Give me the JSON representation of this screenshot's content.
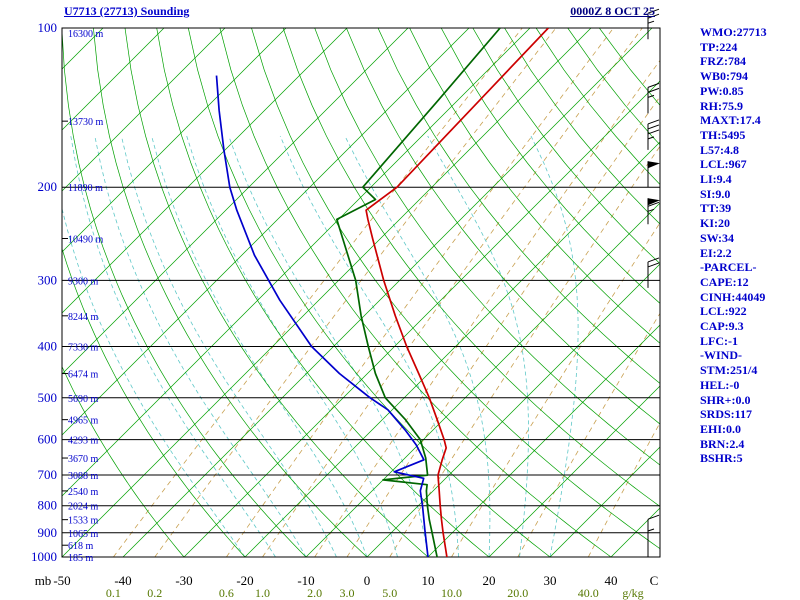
{
  "header": {
    "title": "U7713 (27713) Sounding",
    "date": "0000Z  8 OCT 25"
  },
  "stats": [
    "WMO:27713",
    "TP:224",
    "FRZ:784",
    "WB0:794",
    "PW:0.85",
    "RH:75.9",
    "MAXT:17.4",
    "TH:5495",
    "L57:4.8",
    "LCL:967",
    "LI:9.4",
    "SI:9.0",
    "TT:39",
    "KI:20",
    "SW:34",
    "EI:2.2",
    "-PARCEL-",
    "CAPE:12",
    "CINH:44049",
    "LCL:922",
    "CAP:9.3",
    "LFC:-1",
    "-WIND-",
    "STM:251/4",
    "HEL:-0",
    "SHR+:0.0",
    "SRDS:117",
    "EHI:0.0",
    "BRN:2.4",
    "BSHR:5"
  ],
  "axes": {
    "pressure_unit": "mb",
    "temp_unit": "C",
    "mixing_unit": "g/kg",
    "pressure_labels": [
      100,
      200,
      300,
      400,
      500,
      600,
      700,
      800,
      900,
      1000
    ],
    "temp_labels": [
      -50,
      -40,
      -30,
      -20,
      -10,
      0,
      10,
      20,
      30,
      40
    ],
    "mixing_labels": [
      "0.1",
      "0.2",
      "0.6",
      "1.0",
      "2.0",
      "3.0",
      "5.0",
      "10.0",
      "20.0",
      "40.0"
    ],
    "height_labels": [
      {
        "p": 100,
        "label": "16300 m"
      },
      {
        "p": 150,
        "label": "13730 m"
      },
      {
        "p": 200,
        "label": "11890 m"
      },
      {
        "p": 250,
        "label": "10490 m"
      },
      {
        "p": 300,
        "label": "9300 m"
      },
      {
        "p": 350,
        "label": "8244 m"
      },
      {
        "p": 400,
        "label": "7330 m"
      },
      {
        "p": 450,
        "label": "6474 m"
      },
      {
        "p": 500,
        "label": "5690 m"
      },
      {
        "p": 550,
        "label": "4965 m"
      },
      {
        "p": 600,
        "label": "4293 m"
      },
      {
        "p": 650,
        "label": "3670 m"
      },
      {
        "p": 700,
        "label": "3088 m"
      },
      {
        "p": 750,
        "label": "2540 m"
      },
      {
        "p": 800,
        "label": "2024 m"
      },
      {
        "p": 850,
        "label": "1533 m"
      },
      {
        "p": 900,
        "label": "1065 m"
      },
      {
        "p": 950,
        "label": "618 m"
      },
      {
        "p": 1000,
        "label": "185 m"
      }
    ]
  },
  "chart_data": {
    "type": "skewt_log_p_sounding",
    "title": "U7713 (27713) Sounding",
    "valid_time": "0000Z 8 OCT 25",
    "pressure_range_mb": [
      100,
      1000
    ],
    "temp_range_c": [
      -50,
      40
    ],
    "series": [
      {
        "name": "temperature",
        "color": "#cc0000",
        "points": [
          [
            1000,
            13.1
          ],
          [
            900,
            8.5
          ],
          [
            850,
            6.1
          ],
          [
            800,
            3.6
          ],
          [
            750,
            1.0
          ],
          [
            700,
            -1.8
          ],
          [
            655,
            -3.6
          ],
          [
            622,
            -4.9
          ],
          [
            600,
            -6.6
          ],
          [
            550,
            -11.0
          ],
          [
            500,
            -15.9
          ],
          [
            450,
            -21.6
          ],
          [
            400,
            -28.0
          ],
          [
            350,
            -34.9
          ],
          [
            300,
            -42.6
          ],
          [
            250,
            -51.3
          ],
          [
            230,
            -55.2
          ],
          [
            221,
            -57.0
          ],
          [
            200,
            -55.7
          ],
          [
            137,
            -56.4
          ],
          [
            100,
            -57.0
          ]
        ]
      },
      {
        "name": "dewpoint",
        "color": "#006600",
        "points": [
          [
            1000,
            11.5
          ],
          [
            900,
            6.7
          ],
          [
            850,
            4.1
          ],
          [
            800,
            1.5
          ],
          [
            750,
            -1.1
          ],
          [
            730,
            -2.0
          ],
          [
            715,
            -10.0
          ],
          [
            700,
            -3.5
          ],
          [
            650,
            -6.6
          ],
          [
            600,
            -10.5
          ],
          [
            550,
            -16.2
          ],
          [
            500,
            -23.1
          ],
          [
            450,
            -28.7
          ],
          [
            400,
            -34.3
          ],
          [
            350,
            -40.5
          ],
          [
            300,
            -47.2
          ],
          [
            250,
            -56.2
          ],
          [
            230,
            -60.3
          ],
          [
            211,
            -57.2
          ],
          [
            200,
            -61.3
          ],
          [
            137,
            -63.2
          ],
          [
            100,
            -64.9
          ]
        ]
      },
      {
        "name": "wet_bulb",
        "color": "#0000cc",
        "points": [
          [
            1000,
            10.0
          ],
          [
            890,
            5.1
          ],
          [
            800,
            0.7
          ],
          [
            750,
            -2.1
          ],
          [
            710,
            -3.6
          ],
          [
            690,
            -9.5
          ],
          [
            655,
            -6.6
          ],
          [
            614,
            -10.3
          ],
          [
            575,
            -14.6
          ],
          [
            527,
            -20.7
          ],
          [
            500,
            -25.6
          ],
          [
            450,
            -34.6
          ],
          [
            400,
            -43.6
          ],
          [
            327,
            -56.4
          ],
          [
            269,
            -67.9
          ],
          [
            221,
            -78.2
          ],
          [
            200,
            -83.1
          ],
          [
            170,
            -90.2
          ],
          [
            143,
            -97.5
          ],
          [
            123,
            -103.6
          ]
        ]
      }
    ],
    "wind_barbs": [
      {
        "p": 105,
        "speed_kt": 25
      },
      {
        "p": 145,
        "speed_kt": 25
      },
      {
        "p": 170,
        "speed_kt": 35
      },
      {
        "p": 200,
        "speed_kt": 50
      },
      {
        "p": 235,
        "speed_kt": 65
      },
      {
        "p": 310,
        "speed_kt": 20
      },
      {
        "p": 950,
        "speed_kt": 10
      },
      {
        "p": 1000,
        "speed_kt": 5
      }
    ],
    "background": {
      "isotherms_c": {
        "min": -140,
        "max": 50,
        "step": 10
      },
      "dry_adiabats_c": {
        "min": -30,
        "max": 160,
        "step": 10
      },
      "moist_adiabats_c": {
        "min": -20,
        "max": 30,
        "step": 5
      },
      "mixing_ratios_gkg": [
        0.1,
        0.2,
        0.6,
        1.0,
        2.0,
        3.0,
        5.0,
        10.0,
        20.0,
        40.0
      ]
    }
  },
  "colors": {
    "accent_blue": "#0000cc",
    "date_navy": "#000080",
    "isotherm": "#00a000",
    "dry_adiabat": "#00a000",
    "moist_adiabat": "#5fc8c8",
    "mixing_line": "#c8a050",
    "mixing_label": "#557700",
    "axis_black": "#000000"
  }
}
